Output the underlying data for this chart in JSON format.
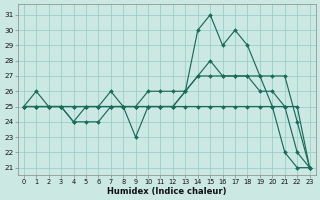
{
  "xlabel": "Humidex (Indice chaleur)",
  "bg_color": "#cce8e3",
  "grid_color": "#99cdc7",
  "line_color": "#1a6b5a",
  "xlim": [
    -0.5,
    23.5
  ],
  "ylim": [
    20.5,
    31.7
  ],
  "yticks": [
    21,
    22,
    23,
    24,
    25,
    26,
    27,
    28,
    29,
    30,
    31
  ],
  "xticks": [
    0,
    1,
    2,
    3,
    4,
    5,
    6,
    7,
    8,
    9,
    10,
    11,
    12,
    13,
    14,
    15,
    16,
    17,
    18,
    19,
    20,
    21,
    22,
    23
  ],
  "series": [
    [
      25,
      26,
      25,
      25,
      24,
      25,
      25,
      26,
      25,
      25,
      25,
      25,
      25,
      26,
      30,
      31,
      29,
      30,
      29,
      27,
      25,
      22,
      21,
      21
    ],
    [
      25,
      25,
      25,
      25,
      25,
      25,
      25,
      25,
      25,
      25,
      26,
      26,
      26,
      26,
      27,
      27,
      27,
      27,
      27,
      27,
      27,
      27,
      24,
      21
    ],
    [
      25,
      25,
      25,
      25,
      25,
      25,
      25,
      25,
      25,
      25,
      25,
      25,
      25,
      25,
      25,
      25,
      25,
      25,
      25,
      25,
      25,
      25,
      25,
      21
    ],
    [
      25,
      25,
      25,
      25,
      24,
      24,
      24,
      25,
      25,
      23,
      25,
      25,
      25,
      26,
      27,
      28,
      27,
      27,
      27,
      26,
      26,
      25,
      22,
      21
    ]
  ]
}
